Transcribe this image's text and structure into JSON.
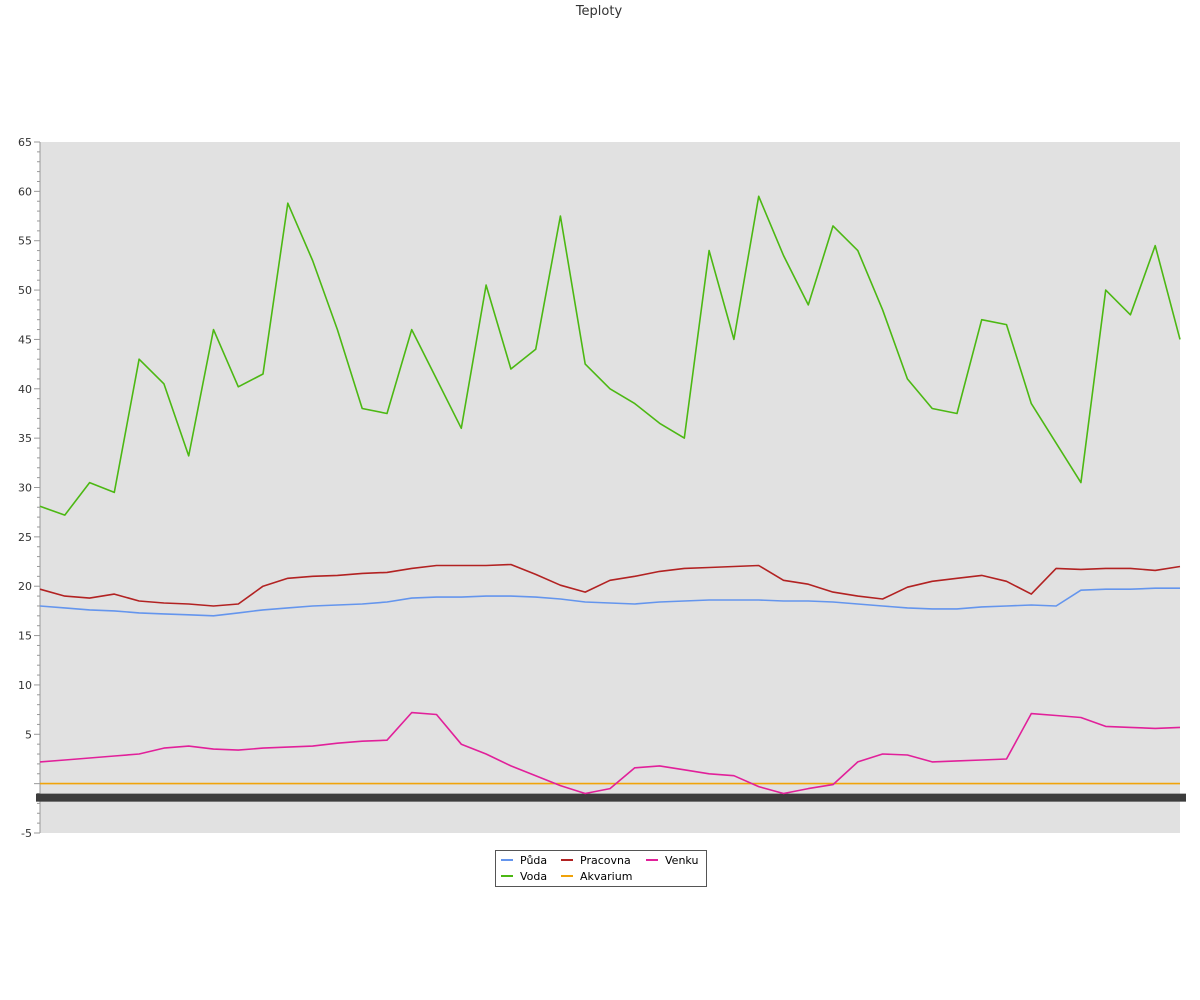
{
  "chart_data": {
    "type": "line",
    "title": "Teploty",
    "xlabel": "",
    "ylabel": "",
    "ylim": [
      -5,
      65
    ],
    "yticks": [
      -5,
      5,
      10,
      15,
      20,
      25,
      30,
      35,
      40,
      45,
      50,
      55,
      60,
      65
    ],
    "x": [
      0,
      25,
      50,
      75,
      100,
      125,
      150,
      175,
      200,
      225,
      250,
      275,
      300,
      325,
      350,
      375,
      400,
      425,
      450,
      475,
      500,
      525,
      550,
      575,
      600,
      625,
      650,
      675,
      700,
      725,
      750,
      775,
      800,
      825,
      850,
      875,
      900,
      925,
      950,
      975,
      1000,
      1025,
      1050,
      1075,
      1100,
      1125,
      1150
    ],
    "grid": false,
    "legend_position": "bottom",
    "plot_background": "#e1e1e1",
    "series": [
      {
        "name": "Půda",
        "color": "#6495ed",
        "values": [
          18.0,
          17.8,
          17.6,
          17.5,
          17.3,
          17.2,
          17.1,
          17.0,
          17.3,
          17.6,
          17.8,
          18.0,
          18.1,
          18.2,
          18.4,
          18.8,
          18.9,
          18.9,
          19.0,
          19.0,
          18.9,
          18.7,
          18.4,
          18.3,
          18.2,
          18.4,
          18.5,
          18.6,
          18.6,
          18.6,
          18.5,
          18.5,
          18.4,
          18.2,
          18.0,
          17.8,
          17.7,
          17.7,
          17.9,
          18.0,
          18.1,
          18.0,
          19.6,
          19.7,
          19.7,
          19.8,
          19.8
        ]
      },
      {
        "name": "Voda",
        "color": "#4cb813",
        "values": [
          28.1,
          27.2,
          30.5,
          29.5,
          43.0,
          40.5,
          33.2,
          46.0,
          40.2,
          41.5,
          58.8,
          53.0,
          46.0,
          38.0,
          37.5,
          46.0,
          41.0,
          36.0,
          50.5,
          42.0,
          44.0,
          57.5,
          42.5,
          40.0,
          38.5,
          36.5,
          35.0,
          54.0,
          45.0,
          59.5,
          53.5,
          48.5,
          56.5,
          54.0,
          48.0,
          41.0,
          38.0,
          37.5,
          47.0,
          46.5,
          38.5,
          34.5,
          30.5,
          50.0,
          47.5,
          54.5,
          45.0
        ]
      },
      {
        "name": "Pracovna",
        "color": "#b22222",
        "values": [
          19.7,
          19.0,
          18.8,
          19.2,
          18.5,
          18.3,
          18.2,
          18.0,
          18.2,
          20.0,
          20.8,
          21.0,
          21.1,
          21.3,
          21.4,
          21.8,
          22.1,
          22.1,
          22.1,
          22.2,
          21.2,
          20.1,
          19.4,
          20.6,
          21.0,
          21.5,
          21.8,
          21.9,
          22.0,
          22.1,
          20.6,
          20.2,
          19.4,
          19.0,
          18.7,
          19.9,
          20.5,
          20.8,
          21.1,
          20.5,
          19.2,
          21.8,
          21.7,
          21.8,
          21.8,
          21.6,
          22.0
        ]
      },
      {
        "name": "Akvarium",
        "color": "#f0a30a",
        "values": [
          0,
          0,
          0,
          0,
          0,
          0,
          0,
          0,
          0,
          0,
          0,
          0,
          0,
          0,
          0,
          0,
          0,
          0,
          0,
          0,
          0,
          0,
          0,
          0,
          0,
          0,
          0,
          0,
          0,
          0,
          0,
          0,
          0,
          0,
          0,
          0,
          0,
          0,
          0,
          0,
          0,
          0,
          0,
          0,
          0,
          0,
          0
        ]
      },
      {
        "name": "Venku",
        "color": "#e1209a",
        "values": [
          2.2,
          2.4,
          2.6,
          2.8,
          3.0,
          3.6,
          3.8,
          3.5,
          3.4,
          3.6,
          3.7,
          3.8,
          4.1,
          4.3,
          4.4,
          7.2,
          7.0,
          4.0,
          3.0,
          1.8,
          0.8,
          -0.2,
          -1.0,
          -0.5,
          1.6,
          1.8,
          1.4,
          1.0,
          0.8,
          -0.3,
          -1.0,
          -0.5,
          -0.1,
          2.2,
          3.0,
          2.9,
          2.2,
          2.3,
          2.4,
          2.5,
          7.1,
          6.9,
          6.7,
          5.8,
          5.7,
          5.6,
          5.7
        ]
      }
    ]
  }
}
